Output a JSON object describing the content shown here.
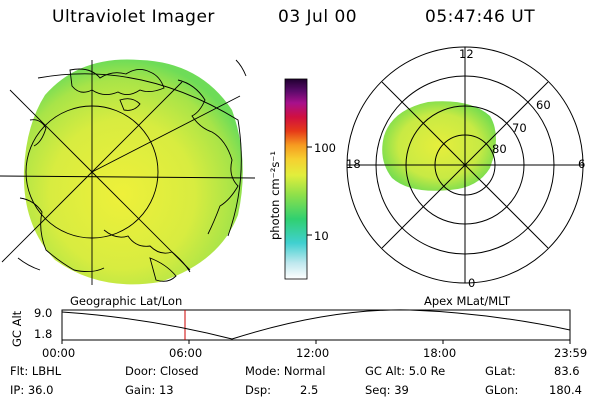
{
  "header": {
    "title": "Ultraviolet Imager",
    "date": "03 Jul 00",
    "time": "05:47:46 UT"
  },
  "colorbar": {
    "unit_label": "photon cm⁻²s⁻¹",
    "tick_labels": [
      "100",
      "10"
    ]
  },
  "geo_panel": {
    "caption": "Geographic Lat/Lon"
  },
  "polar_panel": {
    "caption": "Apex MLat/MLT",
    "mlt_labels": {
      "top": "12",
      "left": "18",
      "right": "6",
      "bottom": "0"
    },
    "lat_labels": [
      "60",
      "70",
      "80"
    ]
  },
  "altitude_plot": {
    "ylabel": "GC Alt",
    "y_ticks": [
      "9.0",
      "1.8"
    ],
    "x_ticks": [
      "00:00",
      "06:00",
      "12:00",
      "18:00",
      "23:59"
    ]
  },
  "status": {
    "flt": "Flt: LBHL",
    "ip": "IP: 36.0",
    "door": "Door: Closed",
    "gain": "Gain: 13",
    "mode": "Mode: Normal",
    "dsp_label": "Dsp:",
    "dsp_value": "2.5",
    "gc_alt": "GC Alt: 5.0 Re",
    "seq": "Seq: 39",
    "glat_label": "GLat:",
    "glat_value": "83.6",
    "glon_label": "GLon:",
    "glon_value": "180.4"
  },
  "colors": {
    "yellow": "#e8ee3a",
    "green": "#7ee04a",
    "cursor": "#cc0000"
  }
}
